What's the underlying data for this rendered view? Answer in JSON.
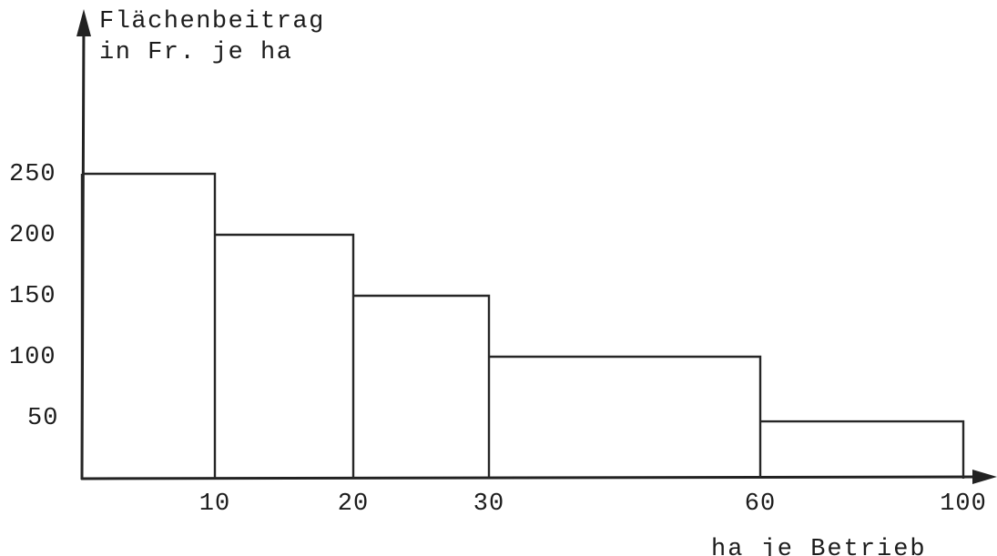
{
  "chart_data": {
    "type": "bar",
    "title_lines": [
      "Flächenbeitrag",
      "in Fr. je ha"
    ],
    "xlabel": "ha je Betrieb",
    "x_ticks": [
      "10",
      "20",
      "30",
      "60",
      "100"
    ],
    "y_ticks": [
      "50",
      "100",
      "150",
      "200",
      "250"
    ],
    "ylim": [
      0,
      300
    ],
    "bins": [
      {
        "from": 0,
        "to": 10,
        "value": 250
      },
      {
        "from": 10,
        "to": 20,
        "value": 200
      },
      {
        "from": 20,
        "to": 30,
        "value": 150
      },
      {
        "from": 30,
        "to": 60,
        "value": 100
      },
      {
        "from": 60,
        "to": 100,
        "value": 47
      }
    ],
    "grid": false,
    "legend": "none"
  }
}
